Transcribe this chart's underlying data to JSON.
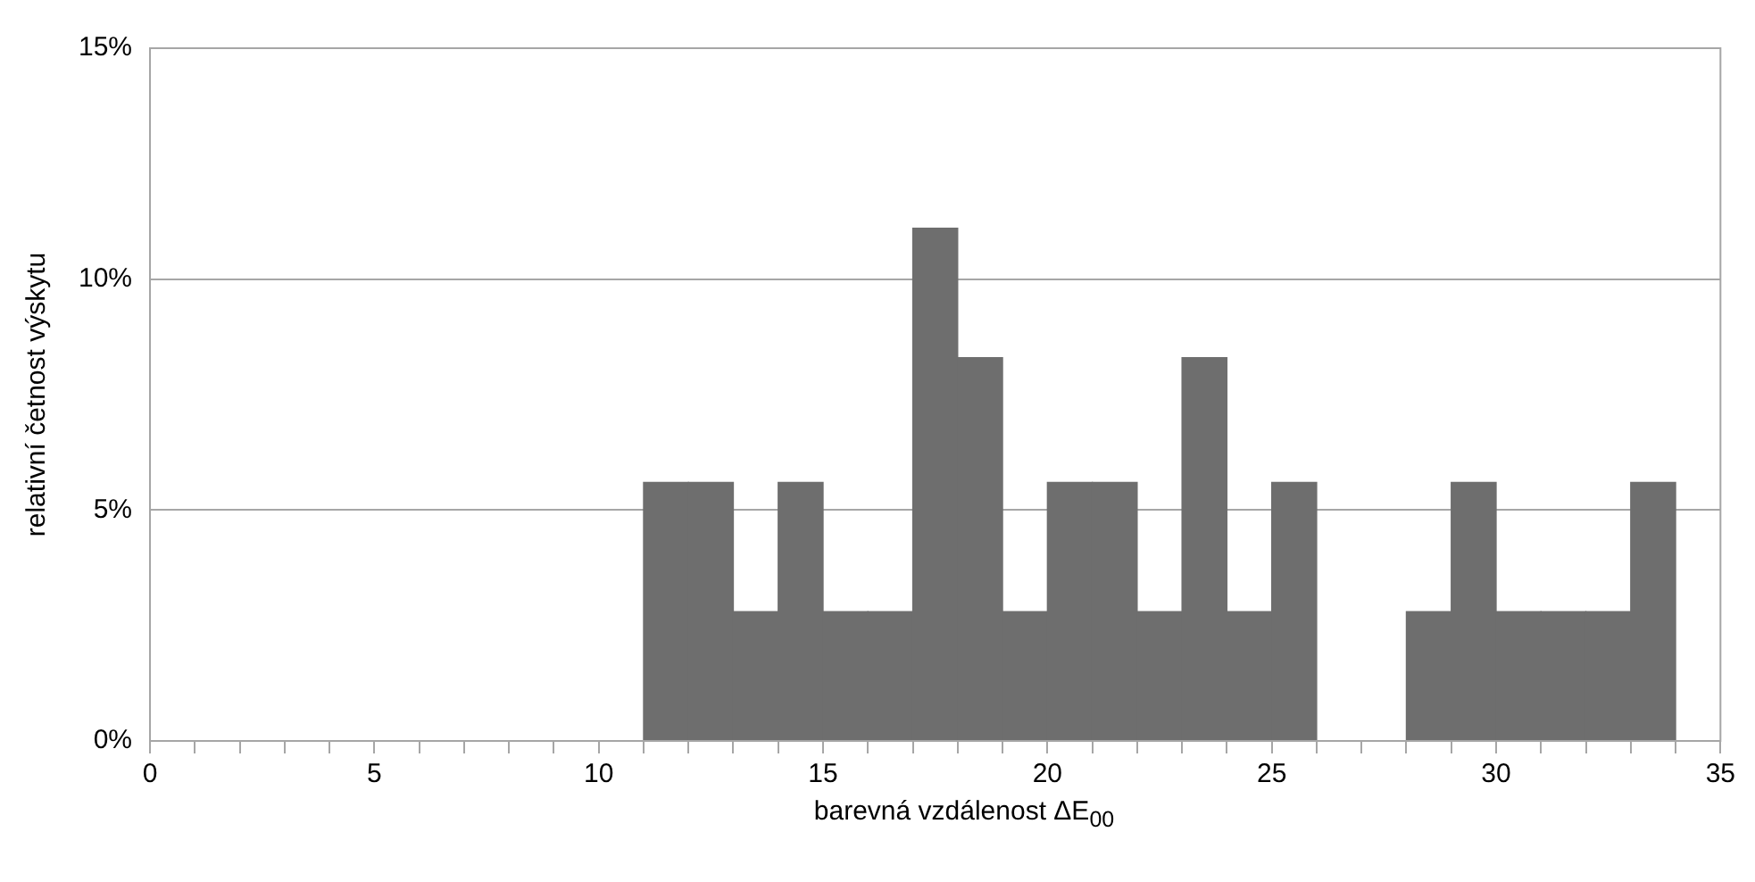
{
  "chart_data": {
    "type": "histogram",
    "xlabel": "barevná vzdálenost ΔE$_{00}$",
    "ylabel": "relativní četnost výskytu",
    "bins": [
      11,
      12,
      13,
      14,
      15,
      16,
      17,
      18,
      19,
      20,
      21,
      22,
      23,
      24,
      25,
      26,
      27,
      28,
      29,
      30,
      31,
      32,
      33,
      34
    ],
    "values": [
      5.6,
      5.6,
      2.8,
      5.6,
      2.8,
      2.8,
      11.1,
      8.3,
      2.8,
      5.6,
      5.6,
      2.8,
      8.3,
      2.8,
      5.6,
      0,
      0,
      2.8,
      5.6,
      2.8,
      2.8,
      2.8,
      5.6
    ],
    "color": "#6e6e6e",
    "xlim": [
      0,
      35
    ],
    "xticks": [
      0,
      {
        "value": 1,
        "label": null
      },
      {
        "value": 2,
        "label": null
      },
      {
        "value": 3,
        "label": null
      },
      {
        "value": 4,
        "label": null
      },
      5,
      {
        "value": 6,
        "label": null
      },
      {
        "value": 7,
        "label": null
      },
      {
        "value": 8,
        "label": null
      },
      {
        "value": 9,
        "label": null
      },
      10,
      {
        "value": 11,
        "label": null
      },
      {
        "value": 12,
        "label": null
      },
      {
        "value": 13,
        "label": null
      },
      {
        "value": 14,
        "label": null
      },
      15,
      {
        "value": 16,
        "label": null
      },
      {
        "value": 17,
        "label": null
      },
      {
        "value": 18,
        "label": null
      },
      {
        "value": 19,
        "label": null
      },
      20,
      {
        "value": 21,
        "label": null
      },
      {
        "value": 22,
        "label": null
      },
      {
        "value": 23,
        "label": null
      },
      {
        "value": 24,
        "label": null
      },
      25,
      {
        "value": 26,
        "label": null
      },
      {
        "value": 27,
        "label": null
      },
      {
        "value": 28,
        "label": null
      },
      {
        "value": 29,
        "label": null
      },
      30,
      {
        "value": 31,
        "label": null
      },
      {
        "value": 32,
        "label": null
      },
      {
        "value": 33,
        "label": null
      },
      {
        "value": 34,
        "label": null
      },
      35
    ],
    "ylim": [
      0,
      15
    ],
    "yticks": [
      {
        "value": 0,
        "label": "0%"
      },
      {
        "value": 5,
        "label": "5%"
      },
      {
        "value": 10,
        "label": "10%"
      },
      {
        "value": 15,
        "label": "15%"
      }
    ],
    "grid": "y",
    "legend": false
  }
}
